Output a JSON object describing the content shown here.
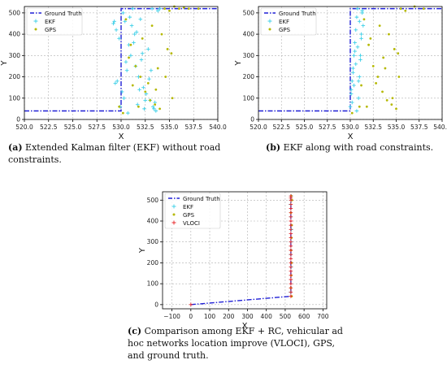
{
  "captions": {
    "a": {
      "letter": "(a)",
      "text": " Extended Kalman filter (EKF) without road constraints."
    },
    "b": {
      "letter": "(b)",
      "text": " EKF along with road constraints."
    },
    "c": {
      "letter": "(c)",
      "text": " Comparison among EKF + RC, vehicular ad hoc networks location improve (VLOCI), GPS, and ground truth."
    }
  },
  "colors": {
    "ground_truth": "#1f1fd6",
    "ekf": "#3fd0e8",
    "gps": "#b5b800",
    "vloci": "#e8262a",
    "grid": "#b0b0b0"
  },
  "chart_data": [
    {
      "type": "scatter",
      "panel": "a",
      "xlabel": "X",
      "ylabel": "Y",
      "xlim": [
        520,
        540
      ],
      "ylim": [
        0,
        530
      ],
      "xticks": [
        "520.0",
        "522.5",
        "525.0",
        "527.5",
        "530.0",
        "532.5",
        "535.0",
        "537.5",
        "540.0"
      ],
      "xtick_values": [
        520,
        522.5,
        525,
        527.5,
        530,
        532.5,
        535,
        537.5,
        540
      ],
      "yticks": [
        "0",
        "100",
        "200",
        "300",
        "400",
        "500"
      ],
      "ytick_values": [
        0,
        100,
        200,
        300,
        400,
        500
      ],
      "grid": true,
      "legend": {
        "position": "top-left",
        "entries": [
          "Ground Truth",
          "EKF",
          "GPS"
        ]
      },
      "series": [
        {
          "name": "Ground Truth",
          "kind": "line",
          "x": [
            520,
            530,
            530,
            533,
            540
          ],
          "y": [
            40,
            40,
            520,
            520,
            520
          ]
        },
        {
          "name": "EKF",
          "kind": "marker-plus",
          "x": [
            529.2,
            529.5,
            529.8,
            530.2,
            530.4,
            530.8,
            531.0,
            531.2,
            531.5,
            531.8,
            532.0,
            532.3,
            532.6,
            533.0,
            533.3,
            533.6,
            534.0,
            529.4,
            530.6,
            531.4,
            532.1,
            532.8,
            533.5,
            530.1,
            531.7,
            529.9,
            532.4,
            533.8,
            531.1,
            530.5,
            529.6,
            532.9,
            531.3,
            533.1,
            530.3,
            529.3,
            532.2,
            531.9,
            530.9,
            533.4,
            531.6,
            530.7,
            532.5,
            533.2
          ],
          "y": [
            450,
            420,
            380,
            500,
            460,
            350,
            300,
            520,
            250,
            200,
            470,
            150,
            120,
            90,
            60,
            40,
            520,
            170,
            230,
            400,
            280,
            330,
            80,
            130,
            70,
            60,
            50,
            510,
            440,
            270,
            180,
            190,
            360,
            230,
            100,
            460,
            310,
            140,
            480,
            50,
            410,
            30,
            90,
            520
          ]
        },
        {
          "name": "GPS",
          "kind": "marker-dot",
          "x": [
            529.8,
            530.5,
            531.0,
            531.5,
            532.0,
            532.5,
            533.0,
            533.5,
            534.0,
            534.5,
            535.0,
            535.5,
            536.0,
            536.5,
            537.0,
            538.0,
            533.2,
            534.2,
            535.2,
            532.2,
            531.2,
            530.2,
            533.8,
            534.8,
            532.8,
            531.8,
            530.8,
            535.3,
            534.6,
            533.6
          ],
          "y": [
            60,
            470,
            350,
            250,
            200,
            130,
            90,
            70,
            50,
            520,
            510,
            530,
            520,
            525,
            520,
            520,
            440,
            400,
            310,
            380,
            160,
            30,
            240,
            330,
            170,
            60,
            290,
            100,
            200,
            140
          ]
        }
      ]
    },
    {
      "type": "scatter",
      "panel": "b",
      "xlabel": "X",
      "ylabel": "Y",
      "xlim": [
        520,
        540
      ],
      "ylim": [
        0,
        530
      ],
      "xticks": [
        "520.0",
        "522.5",
        "525.0",
        "527.5",
        "530.0",
        "532.5",
        "535.0",
        "537.5",
        "540.0"
      ],
      "xtick_values": [
        520,
        522.5,
        525,
        527.5,
        530,
        532.5,
        535,
        537.5,
        540
      ],
      "yticks": [
        "0",
        "100",
        "200",
        "300",
        "400",
        "500"
      ],
      "ytick_values": [
        0,
        100,
        200,
        300,
        400,
        500
      ],
      "grid": true,
      "legend": {
        "position": "top-left",
        "entries": [
          "Ground Truth",
          "EKF",
          "GPS"
        ]
      },
      "series": [
        {
          "name": "Ground Truth",
          "kind": "line",
          "x": [
            520,
            530,
            530,
            533,
            540
          ],
          "y": [
            40,
            40,
            520,
            520,
            520
          ]
        },
        {
          "name": "EKF",
          "kind": "marker-plus",
          "x": [
            530.0,
            530.1,
            530.2,
            530.3,
            530.4,
            530.5,
            530.6,
            530.7,
            530.8,
            530.9,
            531.0,
            531.1,
            531.2,
            531.3,
            531.4,
            530.2,
            530.4,
            530.6,
            530.8,
            531.0,
            531.2,
            530.1,
            530.3,
            530.5,
            530.7,
            530.9,
            531.1,
            531.3
          ],
          "y": [
            60,
            120,
            180,
            240,
            300,
            360,
            420,
            480,
            520,
            100,
            200,
            300,
            400,
            500,
            440,
            80,
            160,
            260,
            340,
            460,
            380,
            140,
            220,
            320,
            40,
            180,
            280,
            510
          ]
        },
        {
          "name": "GPS",
          "kind": "marker-dot",
          "x": [
            531.0,
            531.5,
            532.0,
            532.5,
            533.0,
            533.5,
            534.0,
            534.5,
            535.0,
            535.5,
            536.0,
            537.0,
            538.0,
            533.2,
            534.2,
            535.2,
            532.2,
            531.2,
            530.2,
            533.8,
            534.8,
            532.8,
            531.8,
            533.6,
            534.6,
            535.3
          ],
          "y": [
            60,
            470,
            350,
            250,
            200,
            130,
            90,
            70,
            50,
            520,
            510,
            530,
            520,
            440,
            400,
            310,
            380,
            160,
            30,
            240,
            330,
            170,
            60,
            290,
            100,
            200
          ]
        }
      ]
    },
    {
      "type": "scatter",
      "panel": "c",
      "xlabel": "X",
      "ylabel": "Y",
      "xlim": [
        -150,
        720
      ],
      "ylim": [
        -20,
        540
      ],
      "xticks": [
        "−100",
        "0",
        "100",
        "200",
        "300",
        "400",
        "500",
        "600",
        "700"
      ],
      "xtick_values": [
        -100,
        0,
        100,
        200,
        300,
        400,
        500,
        600,
        700
      ],
      "yticks": [
        "0",
        "100",
        "200",
        "300",
        "400",
        "500"
      ],
      "ytick_values": [
        0,
        100,
        200,
        300,
        400,
        500
      ],
      "grid": true,
      "legend": {
        "position": "top-left",
        "entries": [
          "Ground Truth",
          "EKF",
          "GPS",
          "VLOCI"
        ]
      },
      "series": [
        {
          "name": "Ground Truth",
          "kind": "line",
          "x": [
            0,
            530,
            530
          ],
          "y": [
            0,
            40,
            520
          ]
        },
        {
          "name": "EKF",
          "kind": "marker-plus",
          "x": [
            528,
            530,
            532,
            529,
            531,
            533,
            530,
            528,
            532,
            531
          ],
          "y": [
            60,
            120,
            180,
            240,
            300,
            360,
            420,
            480,
            520,
            500
          ]
        },
        {
          "name": "GPS",
          "kind": "marker-dot",
          "x": [
            530,
            532,
            534,
            531,
            533,
            535,
            530,
            536,
            532,
            534
          ],
          "y": [
            80,
            140,
            200,
            260,
            320,
            380,
            440,
            500,
            520,
            40
          ]
        },
        {
          "name": "VLOCI",
          "kind": "marker-plus",
          "x": [
            0,
            530,
            530,
            530,
            530,
            530,
            530,
            530,
            530,
            530,
            530,
            530,
            530,
            530,
            530,
            530,
            530,
            530,
            530,
            530,
            530,
            530,
            530,
            530,
            530,
            530,
            530
          ],
          "y": [
            0,
            40,
            60,
            80,
            100,
            120,
            140,
            160,
            180,
            200,
            220,
            240,
            260,
            280,
            300,
            320,
            340,
            360,
            380,
            400,
            420,
            440,
            460,
            480,
            500,
            510,
            520
          ]
        }
      ]
    }
  ]
}
